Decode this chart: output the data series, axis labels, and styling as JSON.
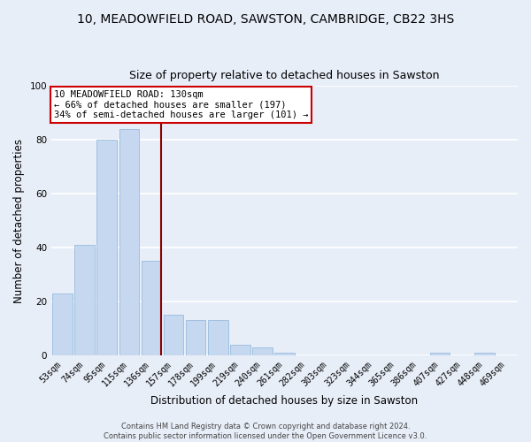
{
  "title": "10, MEADOWFIELD ROAD, SAWSTON, CAMBRIDGE, CB22 3HS",
  "subtitle": "Size of property relative to detached houses in Sawston",
  "xlabel": "Distribution of detached houses by size in Sawston",
  "ylabel": "Number of detached properties",
  "bin_labels": [
    "53sqm",
    "74sqm",
    "95sqm",
    "115sqm",
    "136sqm",
    "157sqm",
    "178sqm",
    "199sqm",
    "219sqm",
    "240sqm",
    "261sqm",
    "282sqm",
    "303sqm",
    "323sqm",
    "344sqm",
    "365sqm",
    "386sqm",
    "407sqm",
    "427sqm",
    "448sqm",
    "469sqm"
  ],
  "bar_values": [
    23,
    41,
    80,
    84,
    35,
    15,
    13,
    13,
    4,
    3,
    1,
    0,
    0,
    0,
    0,
    0,
    0,
    1,
    0,
    1,
    0
  ],
  "bar_color": "#c5d8f0",
  "bar_edge_color": "#8ab4d8",
  "vline_color": "#8b0000",
  "annotation_text": "10 MEADOWFIELD ROAD: 130sqm\n← 66% of detached houses are smaller (197)\n34% of semi-detached houses are larger (101) →",
  "annotation_box_color": "#ffffff",
  "annotation_box_edge_color": "#cc0000",
  "ylim": [
    0,
    100
  ],
  "yticks": [
    0,
    20,
    40,
    60,
    80,
    100
  ],
  "footer_text": "Contains HM Land Registry data © Crown copyright and database right 2024.\nContains public sector information licensed under the Open Government Licence v3.0.",
  "bg_color": "#e8eef8",
  "plot_bg_color": "#e8eef8",
  "grid_color": "#ffffff",
  "title_fontsize": 10,
  "subtitle_fontsize": 9,
  "tick_fontsize": 7,
  "ylabel_fontsize": 8.5,
  "xlabel_fontsize": 8.5,
  "footer_fontsize": 6,
  "annotation_fontsize": 7.5
}
